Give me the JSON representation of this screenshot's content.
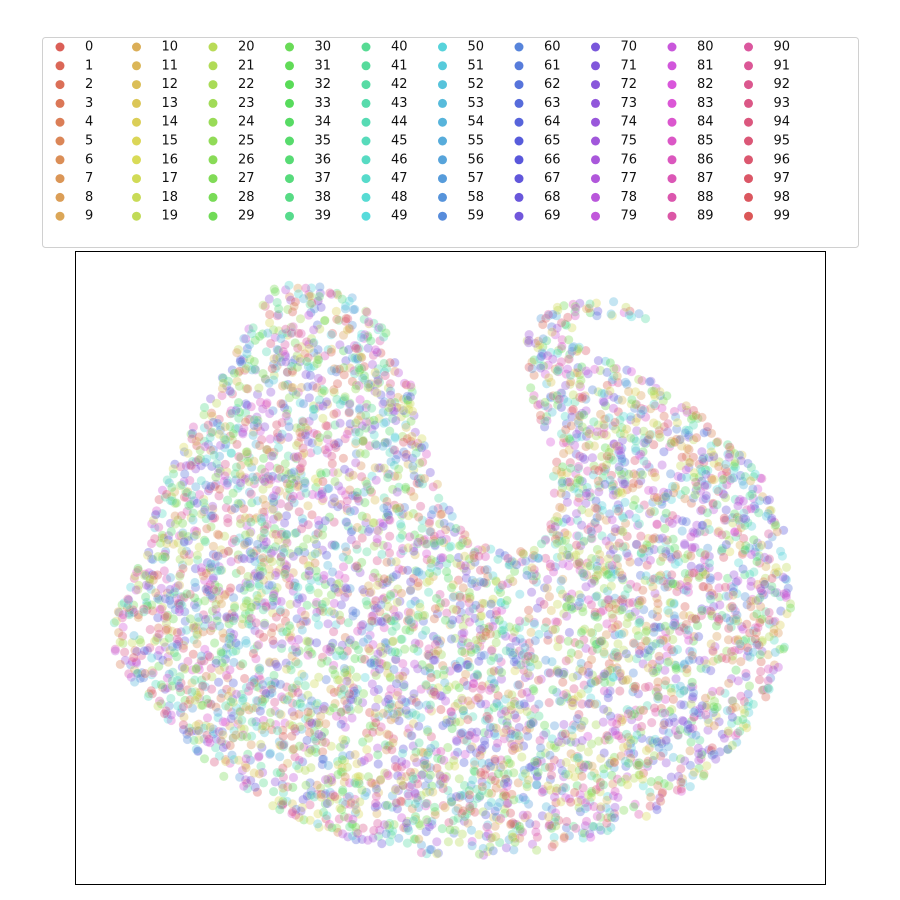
{
  "chart_data": {
    "type": "scatter",
    "title": "",
    "xlabel": "",
    "ylabel": "",
    "x_ticks_shown": false,
    "y_ticks_shown": false,
    "grid": false,
    "legend_placement": "top, above plot, 10 columns",
    "legend_entries": [
      "0",
      "1",
      "2",
      "3",
      "4",
      "5",
      "6",
      "7",
      "8",
      "9",
      "10",
      "11",
      "12",
      "13",
      "14",
      "15",
      "16",
      "17",
      "18",
      "19",
      "20",
      "21",
      "22",
      "23",
      "24",
      "25",
      "26",
      "27",
      "28",
      "29",
      "30",
      "31",
      "32",
      "33",
      "34",
      "35",
      "36",
      "37",
      "38",
      "39",
      "40",
      "41",
      "42",
      "43",
      "44",
      "45",
      "46",
      "47",
      "48",
      "49",
      "50",
      "51",
      "52",
      "53",
      "54",
      "55",
      "56",
      "57",
      "58",
      "59",
      "60",
      "61",
      "62",
      "63",
      "64",
      "65",
      "66",
      "67",
      "68",
      "69",
      "70",
      "71",
      "72",
      "73",
      "74",
      "75",
      "76",
      "77",
      "78",
      "79",
      "80",
      "81",
      "82",
      "83",
      "84",
      "85",
      "86",
      "87",
      "88",
      "89",
      "90",
      "91",
      "92",
      "93",
      "94",
      "95",
      "96",
      "97",
      "98",
      "99"
    ],
    "palette": "hls",
    "point_alpha": 0.35,
    "point_edge_color": "#ffffff",
    "distribution": "all 100 classes uniformly mixed across one large crescent/horseshoe-shaped cluster with an upward notch at the top center"
  }
}
